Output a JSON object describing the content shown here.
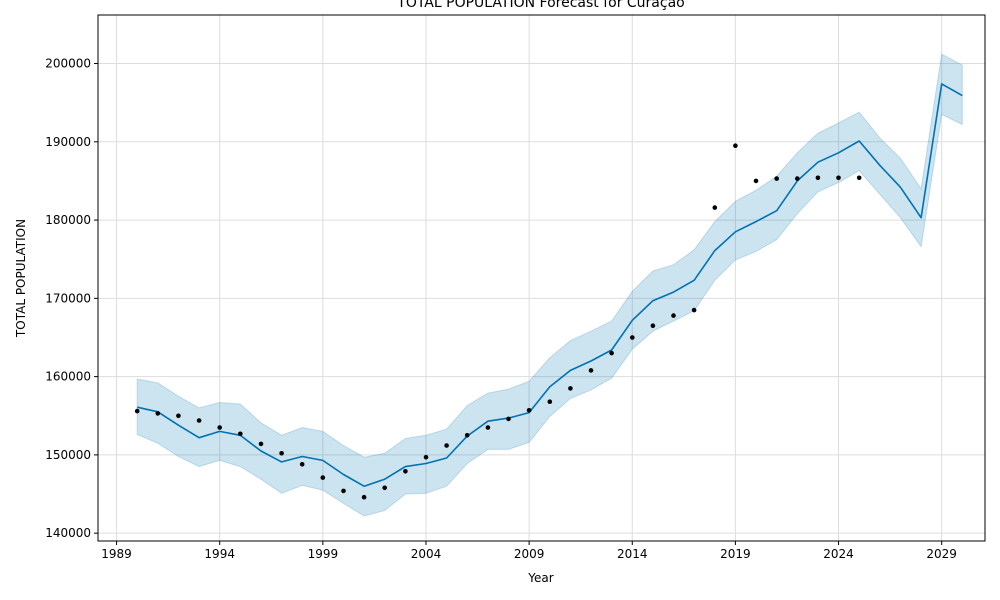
{
  "chart_data": {
    "type": "line",
    "title": "TOTAL POPULATION Forecast for Curaçao",
    "xlabel": "Year",
    "ylabel": "TOTAL POPULATION",
    "xlim": [
      1988.1,
      2031.1
    ],
    "ylim": [
      139000,
      206200
    ],
    "grid": true,
    "x_ticks": [
      1989,
      1994,
      1999,
      2004,
      2009,
      2014,
      2019,
      2024,
      2029
    ],
    "y_ticks": [
      140000,
      150000,
      160000,
      170000,
      180000,
      190000,
      200000
    ],
    "colors": {
      "forecast": "#0072B2",
      "interval": "#0072B2",
      "observed": "#000000",
      "grid": "#dddddd"
    },
    "series": [
      {
        "kind": "observed",
        "x": [
          1990,
          1991,
          1992,
          1993,
          1994,
          1995,
          1996,
          1997,
          1998,
          1999,
          2000,
          2001,
          2002,
          2003,
          2004,
          2005,
          2006,
          2007,
          2008,
          2009,
          2010,
          2011,
          2012,
          2013,
          2014,
          2015,
          2016,
          2017,
          2018,
          2019,
          2020,
          2021,
          2022,
          2023,
          2024,
          2025
        ],
        "y": [
          155600,
          155300,
          155000,
          154400,
          153500,
          152700,
          151400,
          150200,
          148800,
          147100,
          145400,
          144600,
          145800,
          147900,
          149700,
          151200,
          152500,
          153500,
          154600,
          155700,
          156800,
          158500,
          160800,
          163000,
          165000,
          166500,
          167800,
          168500,
          181600,
          189500,
          185000,
          185300,
          185300,
          185400,
          185400,
          185400
        ]
      },
      {
        "kind": "forecast",
        "x": [
          1990,
          1991,
          1992,
          1993,
          1994,
          1995,
          1996,
          1997,
          1998,
          1999,
          2000,
          2001,
          2002,
          2003,
          2004,
          2005,
          2006,
          2007,
          2008,
          2009,
          2010,
          2011,
          2012,
          2013,
          2014,
          2015,
          2016,
          2017,
          2018,
          2019,
          2020,
          2021,
          2022,
          2023,
          2024,
          2025,
          2026,
          2027,
          2028,
          2029,
          2030
        ],
        "y": [
          156100,
          155500,
          153800,
          152200,
          153000,
          152500,
          150500,
          149100,
          149800,
          149300,
          147500,
          146000,
          146900,
          148500,
          148900,
          149600,
          152400,
          154300,
          154700,
          155400,
          158700,
          160800,
          162000,
          163400,
          167200,
          169700,
          170800,
          172300,
          176100,
          178500,
          179800,
          181200,
          185000,
          187400,
          188600,
          190100,
          187000,
          184200,
          180300,
          197400,
          195900
        ]
      },
      {
        "kind": "upper",
        "x": [
          1990,
          1991,
          1992,
          1993,
          1994,
          1995,
          1996,
          1997,
          1998,
          1999,
          2000,
          2001,
          2002,
          2003,
          2004,
          2005,
          2006,
          2007,
          2008,
          2009,
          2010,
          2011,
          2012,
          2013,
          2014,
          2015,
          2016,
          2017,
          2018,
          2019,
          2020,
          2021,
          2022,
          2023,
          2024,
          2025,
          2026,
          2027,
          2028,
          2029,
          2030
        ],
        "y": [
          159700,
          159200,
          157500,
          156000,
          156700,
          156500,
          154100,
          152500,
          153500,
          153000,
          151200,
          149700,
          150200,
          152100,
          152500,
          153300,
          156300,
          157900,
          158400,
          159400,
          162400,
          164600,
          165800,
          167100,
          170900,
          173500,
          174300,
          176200,
          179800,
          182400,
          183800,
          185600,
          188600,
          191100,
          192400,
          193800,
          190500,
          187900,
          184000,
          201200,
          199800
        ]
      },
      {
        "kind": "lower",
        "x": [
          1990,
          1991,
          1992,
          1993,
          1994,
          1995,
          1996,
          1997,
          1998,
          1999,
          2000,
          2001,
          2002,
          2003,
          2004,
          2005,
          2006,
          2007,
          2008,
          2009,
          2010,
          2011,
          2012,
          2013,
          2014,
          2015,
          2016,
          2017,
          2018,
          2019,
          2020,
          2021,
          2022,
          2023,
          2024,
          2025,
          2026,
          2027,
          2028,
          2029,
          2030
        ],
        "y": [
          152600,
          151500,
          149800,
          148500,
          149300,
          148500,
          146900,
          145100,
          146100,
          145500,
          143800,
          142200,
          142900,
          145000,
          145100,
          146000,
          148900,
          150700,
          150700,
          151600,
          154900,
          157200,
          158300,
          159800,
          163500,
          165800,
          167100,
          168400,
          172300,
          174900,
          176000,
          177500,
          180800,
          183600,
          184800,
          186300,
          183300,
          180300,
          176600,
          193500,
          192200
        ]
      }
    ]
  }
}
